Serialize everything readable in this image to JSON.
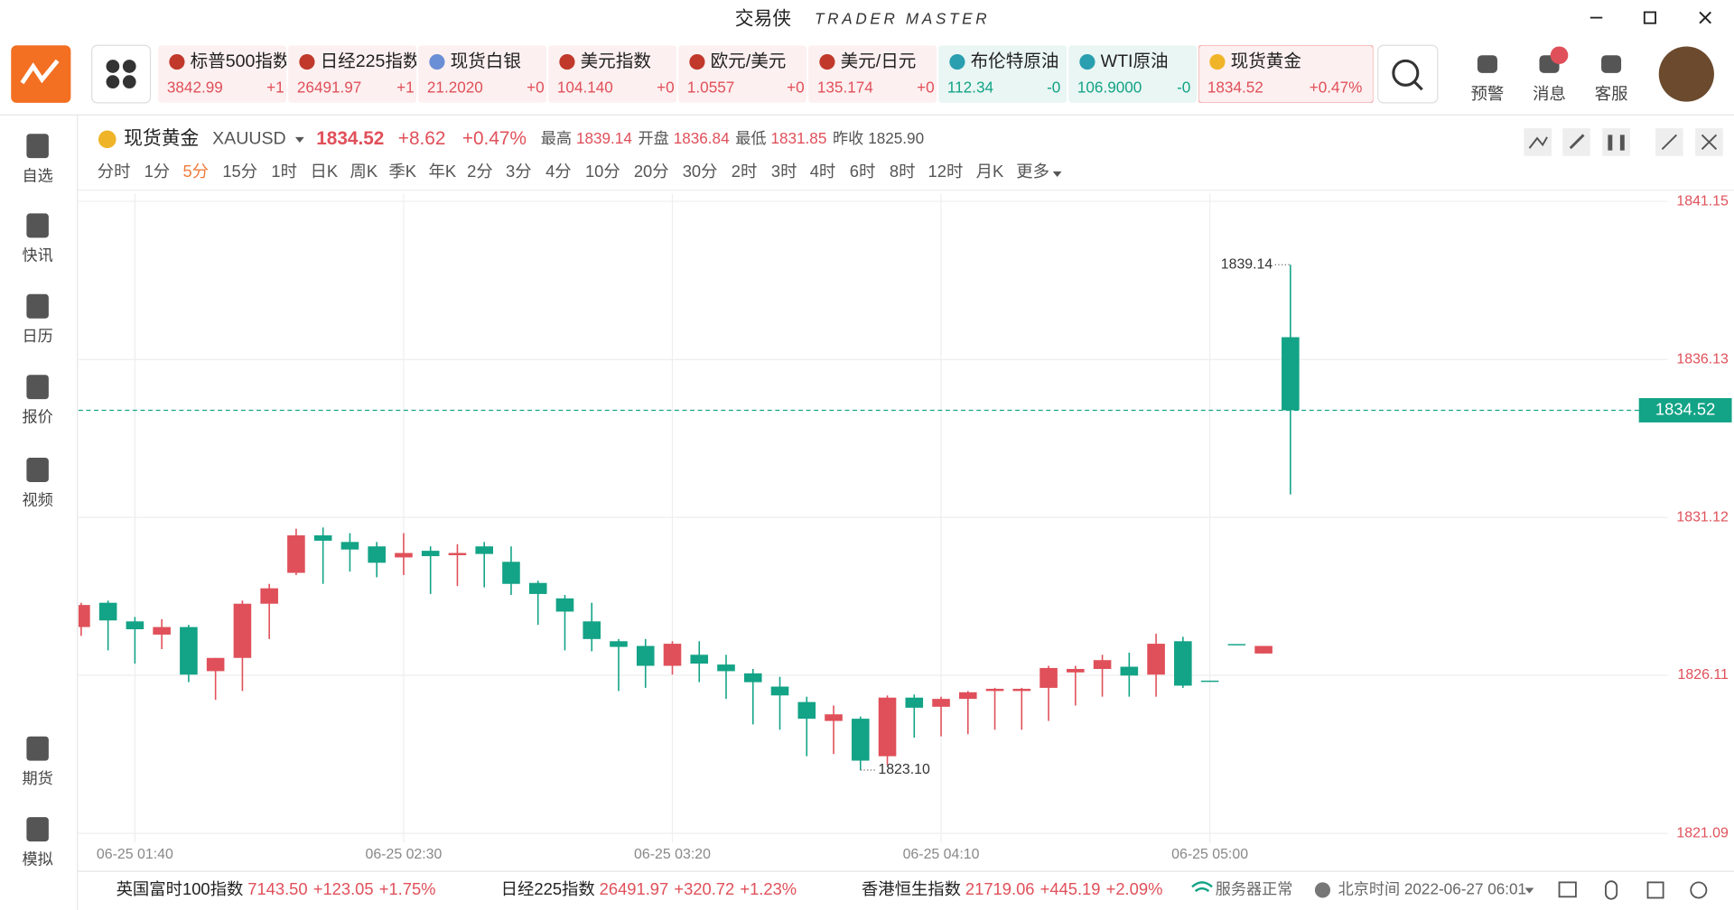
{
  "app": {
    "title": "交易侠",
    "subtitle": "TRADER MASTER"
  },
  "tickers": [
    {
      "name": "标普500指数",
      "price": "3842.99",
      "change": "+1"
    },
    {
      "name": "日经225指数",
      "price": "26491.97",
      "change": "+1"
    },
    {
      "name": "现货白银",
      "price": "21.2020",
      "change": "+0"
    },
    {
      "name": "美元指数",
      "price": "104.140",
      "change": "+0"
    },
    {
      "name": "欧元/美元",
      "price": "1.0557",
      "change": "+0"
    },
    {
      "name": "美元/日元",
      "price": "135.174",
      "change": "+0"
    },
    {
      "name": "布伦特原油",
      "price": "112.34",
      "change": "-0"
    },
    {
      "name": "WTI原油",
      "price": "106.9000",
      "change": "-0"
    },
    {
      "name": "现货黄金",
      "price": "1834.52",
      "change": "+0.47%"
    }
  ],
  "nav": [
    "预警",
    "消息",
    "客服"
  ],
  "sidebar": [
    "自选",
    "快讯",
    "日历",
    "报价",
    "视频",
    "期货",
    "模拟"
  ],
  "quote": {
    "name": "现货黄金",
    "symbol": "XAUUSD",
    "price": "1834.52",
    "change": "+8.62",
    "pct": "+0.47%",
    "stats": [
      {
        "label": "最高",
        "value": "1839.14"
      },
      {
        "label": "开盘",
        "value": "1836.84"
      },
      {
        "label": "最低",
        "value": "1831.85"
      },
      {
        "label": "昨收",
        "value": "1825.90"
      }
    ]
  },
  "timeframes": [
    "分时",
    "1分",
    "5分",
    "15分",
    "1时",
    "日K",
    "周K",
    "季K",
    "年K",
    "2分",
    "3分",
    "4分",
    "10分",
    "20分",
    "30分",
    "2时",
    "3时",
    "4时",
    "6时",
    "8时",
    "12时",
    "月K",
    "更多"
  ],
  "active_timeframe": "5分",
  "chart_data": {
    "type": "candlestick",
    "categories": [
      null,
      null,
      "06-25 01:40",
      null,
      null,
      null,
      null,
      null,
      null,
      null,
      null,
      null,
      "06-25 02:30",
      null,
      null,
      null,
      null,
      null,
      null,
      null,
      null,
      null,
      "06-25 03:20",
      null,
      null,
      null,
      null,
      null,
      null,
      null,
      null,
      null,
      "06-25 04:10",
      null,
      null,
      null,
      null,
      null,
      null,
      null,
      null,
      null,
      "06-25 05:00",
      null,
      null,
      null
    ],
    "open": [
      1827.64,
      1828.41,
      1827.82,
      1827.4,
      1827.64,
      1826.24,
      1826.66,
      1828.38,
      1829.36,
      1830.55,
      1830.34,
      1830.2,
      1829.85,
      1830.06,
      1829.92,
      1830.2,
      1829.71,
      1829.04,
      1828.55,
      1827.82,
      1827.19,
      1827.04,
      1826.41,
      1826.76,
      1826.45,
      1826.17,
      1825.75,
      1825.26,
      1824.66,
      1824.73,
      1823.54,
      1825.4,
      1825.11,
      1825.36,
      1825.61,
      1825.61,
      1825.71,
      1826.2,
      1826.31,
      1826.38,
      1826.13,
      1827.19,
      1825.94,
      1827.1,
      1826.8,
      1836.84
    ],
    "high": [
      1828.41,
      1828.48,
      1827.96,
      1827.89,
      1827.71,
      1826.66,
      1828.48,
      1829.01,
      1830.76,
      1830.8,
      1830.62,
      1830.34,
      1830.62,
      1830.2,
      1830.27,
      1830.34,
      1830.2,
      1829.11,
      1828.66,
      1828.41,
      1827.26,
      1827.26,
      1827.19,
      1827.19,
      1826.76,
      1826.31,
      1826.06,
      1825.43,
      1825.15,
      1824.8,
      1825.47,
      1825.5,
      1825.43,
      1825.61,
      1825.71,
      1825.71,
      1826.41,
      1826.41,
      1826.76,
      1826.83,
      1827.43,
      1827.33,
      1825.94,
      1827.1,
      1827.04,
      1839.14
    ],
    "low": [
      1827.36,
      1826.9,
      1826.48,
      1826.94,
      1825.89,
      1825.33,
      1825.61,
      1827.26,
      1829.29,
      1829.01,
      1829.4,
      1829.22,
      1829.29,
      1828.69,
      1828.94,
      1828.9,
      1828.66,
      1827.71,
      1826.9,
      1826.87,
      1825.61,
      1825.71,
      1826.13,
      1825.89,
      1825.36,
      1824.55,
      1824.38,
      1823.54,
      1823.61,
      1823.1,
      1823.26,
      1824.13,
      1824.17,
      1824.24,
      1824.38,
      1824.38,
      1824.66,
      1825.15,
      1825.43,
      1825.43,
      1825.43,
      1825.71,
      1825.94,
      1827.1,
      1826.8,
      1831.85
    ],
    "close": [
      1828.34,
      1827.85,
      1827.57,
      1827.64,
      1826.13,
      1826.66,
      1828.38,
      1828.87,
      1830.55,
      1830.38,
      1830.1,
      1829.68,
      1829.99,
      1829.89,
      1829.99,
      1829.96,
      1829.01,
      1828.69,
      1828.13,
      1827.26,
      1827.01,
      1826.41,
      1827.11,
      1826.48,
      1826.24,
      1825.89,
      1825.47,
      1824.73,
      1824.87,
      1823.4,
      1825.4,
      1825.08,
      1825.36,
      1825.57,
      1825.68,
      1825.68,
      1826.34,
      1826.31,
      1826.59,
      1826.1,
      1827.11,
      1825.78,
      1825.94,
      1827.1,
      1827.04,
      1834.52
    ],
    "ylim": [
      1820.8,
      1841.4
    ],
    "yticks": [
      1841.15,
      1836.13,
      1831.12,
      1826.11,
      1821.09
    ],
    "grid": true,
    "up_color": "#e0505a",
    "down_color": "#13a386",
    "last_price": 1834.52,
    "annotations": [
      1839.14,
      {
        "value": 1823.1,
        "label": "1823.10"
      }
    ]
  },
  "footer": {
    "indices": [
      {
        "name": "英国富时100指数",
        "value": "7143.50",
        "change": "+123.05",
        "pct": "+1.75%"
      },
      {
        "name": "日经225指数",
        "value": "26491.97",
        "change": "+320.72",
        "pct": "+1.23%"
      },
      {
        "name": "香港恒生指数",
        "value": "21719.06",
        "change": "+445.19",
        "pct": "+2.09%"
      }
    ],
    "status": "服务器正常",
    "clock": "北京时间 2022-06-27 06:01"
  }
}
